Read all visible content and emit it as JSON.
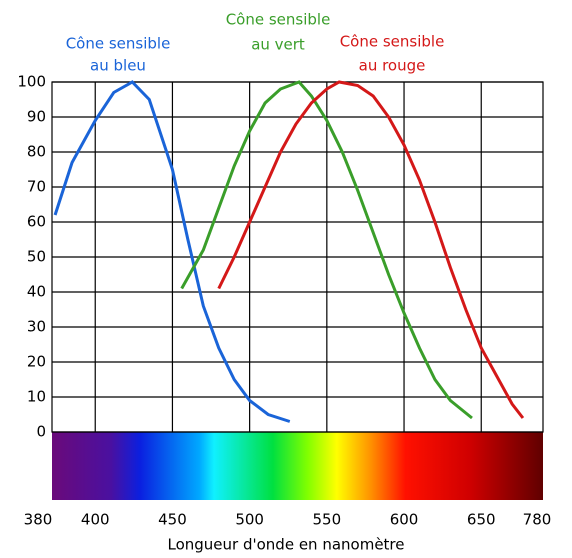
{
  "chart_data": {
    "type": "line",
    "xlabel": "Longueur d'onde en nanomètre",
    "xlim": [
      372,
      690
    ],
    "xticks": [
      400,
      450,
      500,
      550,
      600,
      650
    ],
    "spectrum_range": [
      380,
      780
    ],
    "ylim": [
      0,
      100
    ],
    "yticks": [
      0,
      10,
      20,
      30,
      40,
      50,
      60,
      70,
      80,
      90,
      100
    ],
    "grid": true,
    "series": [
      {
        "label": [
          "Cône sensible",
          "au bleu"
        ],
        "color": "#1a64d8",
        "x": [
          374,
          385,
          400,
          412,
          424,
          435,
          450,
          460,
          470,
          480,
          490,
          500,
          512,
          526
        ],
        "values": [
          62,
          77,
          89,
          97,
          100,
          95,
          75,
          55,
          36,
          24,
          15,
          9,
          5,
          3
        ]
      },
      {
        "label": [
          "Cône sensible",
          "au vert"
        ],
        "color": "#3a9e2a",
        "x": [
          456,
          470,
          480,
          490,
          500,
          510,
          520,
          532,
          540,
          550,
          560,
          570,
          580,
          590,
          600,
          610,
          620,
          630,
          644
        ],
        "values": [
          41,
          52,
          64,
          76,
          86,
          94,
          98,
          100,
          96,
          89,
          80,
          69,
          57,
          45,
          34,
          24,
          15,
          9,
          4
        ]
      },
      {
        "label": [
          "Cône sensible",
          "au rouge"
        ],
        "color": "#d41818",
        "x": [
          480,
          490,
          500,
          510,
          520,
          530,
          540,
          550,
          558,
          570,
          580,
          590,
          600,
          610,
          620,
          630,
          640,
          650,
          660,
          670,
          677
        ],
        "values": [
          41,
          50,
          60,
          70,
          80,
          88,
          94,
          98,
          100,
          99,
          96,
          90,
          82,
          72,
          60,
          47,
          35,
          24,
          16,
          8,
          4
        ]
      }
    ]
  }
}
